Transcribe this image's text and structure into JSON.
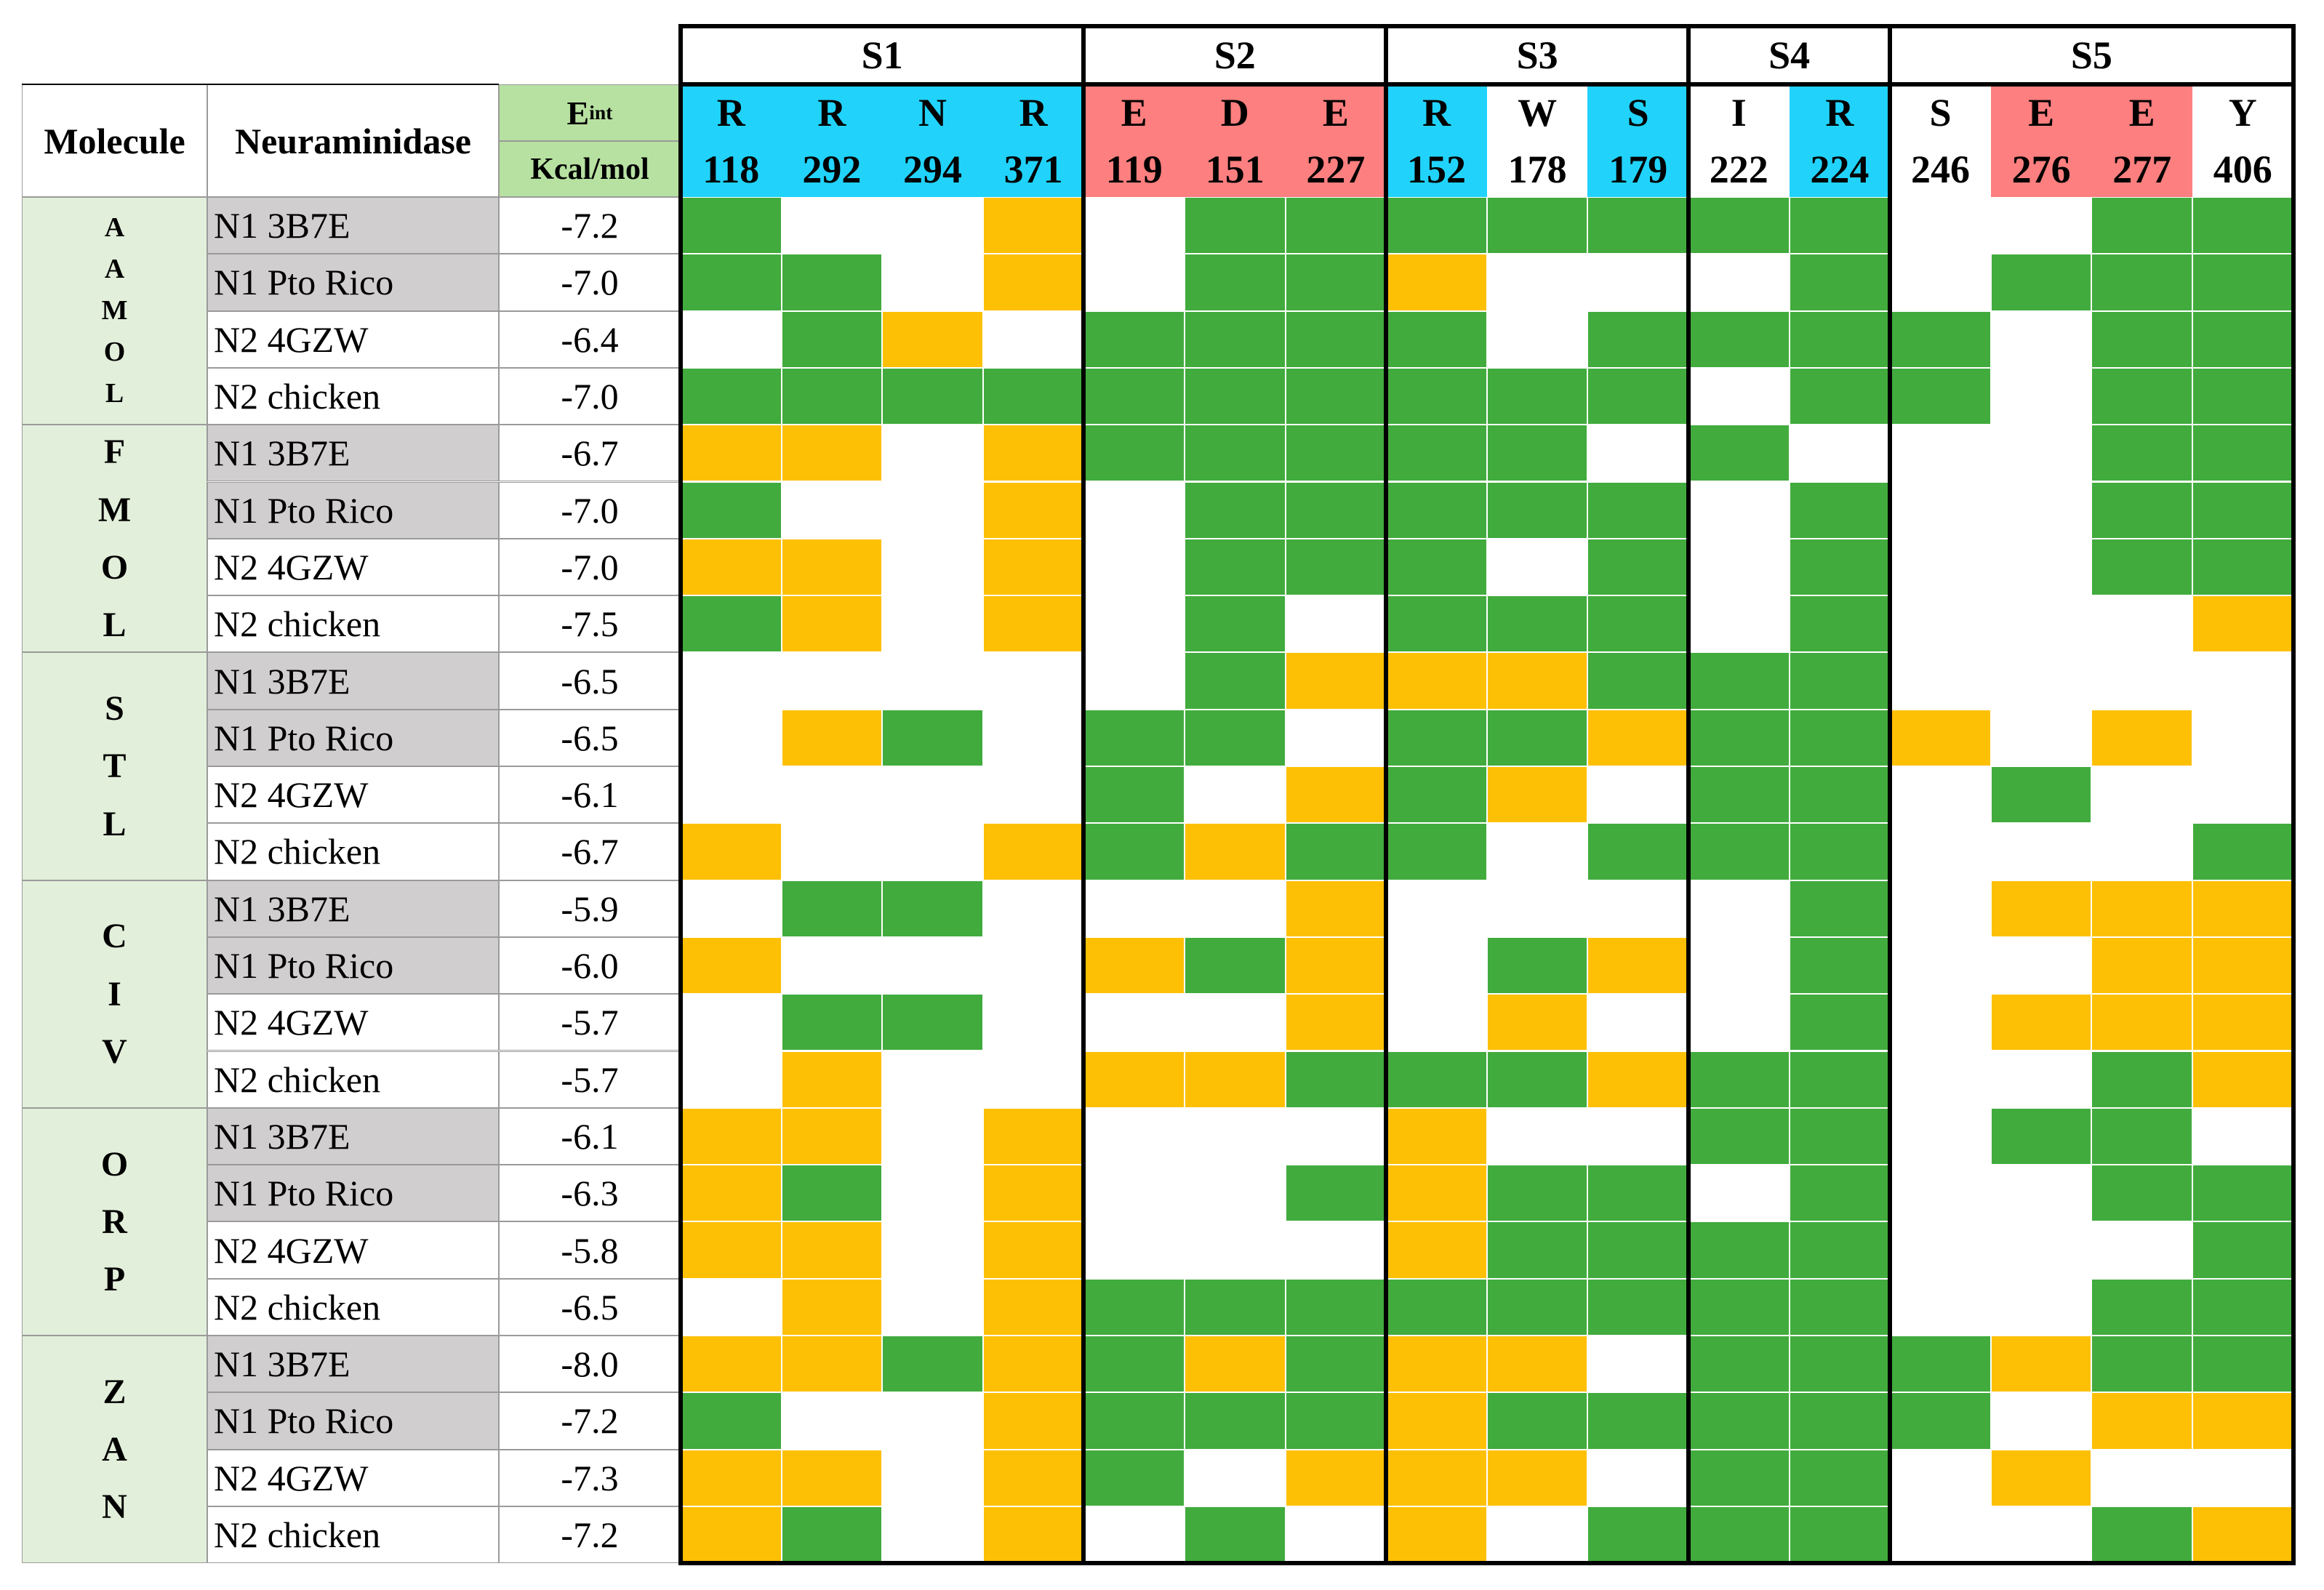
{
  "header": {
    "molecule": "Molecule",
    "neuraminidase": "Neuraminidase",
    "eint_main": "E",
    "eint_sub": "int",
    "eint_unit": "Kcal/mol"
  },
  "sites": [
    {
      "label": "S1",
      "span": 4
    },
    {
      "label": "S2",
      "span": 3
    },
    {
      "label": "S3",
      "span": 3
    },
    {
      "label": "S4",
      "span": 2
    },
    {
      "label": "S5",
      "span": 4
    }
  ],
  "residues": [
    {
      "aa": "R",
      "num": "118",
      "color": "#21d3fb"
    },
    {
      "aa": "R",
      "num": "292",
      "color": "#21d3fb"
    },
    {
      "aa": "N",
      "num": "294",
      "color": "#21d3fb"
    },
    {
      "aa": "R",
      "num": "371",
      "color": "#21d3fb"
    },
    {
      "aa": "E",
      "num": "119",
      "color": "#fd7f7f"
    },
    {
      "aa": "D",
      "num": "151",
      "color": "#fd7f7f"
    },
    {
      "aa": "E",
      "num": "227",
      "color": "#fd7f7f"
    },
    {
      "aa": "R",
      "num": "152",
      "color": "#21d3fb"
    },
    {
      "aa": "W",
      "num": "178",
      "color": "#ffffff"
    },
    {
      "aa": "S",
      "num": "179",
      "color": "#21d3fb"
    },
    {
      "aa": "I",
      "num": "222",
      "color": "#ffffff"
    },
    {
      "aa": "R",
      "num": "224",
      "color": "#21d3fb"
    },
    {
      "aa": "S",
      "num": "246",
      "color": "#ffffff"
    },
    {
      "aa": "E",
      "num": "276",
      "color": "#fd7f7f"
    },
    {
      "aa": "E",
      "num": "277",
      "color": "#fd7f7f"
    },
    {
      "aa": "Y",
      "num": "406",
      "color": "#ffffff"
    }
  ],
  "colors": {
    "green": "#41ab3d",
    "orange": "#fec004",
    "white": "#ffffff",
    "blue": "#21d3fb",
    "red": "#fd7f7f",
    "gray": "#d0cece",
    "mint": "#e2efda",
    "eint_bg": "#b7e1a1"
  },
  "groups": [
    {
      "molecule": "AAMOL",
      "rows": [
        {
          "neuraminidase": "N1 3B7E",
          "eint": "-7.2",
          "cells": "GWWOWGGGGGGGWWGG"
        },
        {
          "neuraminidase": "N1 Pto Rico",
          "eint": "-7.0",
          "cells": "GGWOWGGOWWWGWGGG"
        },
        {
          "neuraminidase": "N2 4GZW",
          "eint": "-6.4",
          "cells": "WGOWGGGGWGGGGWGG"
        },
        {
          "neuraminidase": "N2 chicken",
          "eint": "-7.0",
          "cells": "GGGGGGGGGGWGGWGG"
        }
      ]
    },
    {
      "molecule": "FMOL",
      "rows": [
        {
          "neuraminidase": "N1 3B7E",
          "eint": "-6.7",
          "cells": "OOWOGGGGGWGWWWGG"
        },
        {
          "neuraminidase": "N1 Pto Rico",
          "eint": "-7.0",
          "cells": "GWWOWGGGGGWGWWGG"
        },
        {
          "neuraminidase": "N2 4GZW",
          "eint": "-7.0",
          "cells": "OOWOWGGGWGWGWWGG"
        },
        {
          "neuraminidase": "N2 chicken",
          "eint": "-7.5",
          "cells": "GOWOWGWGGGWGWWWO"
        }
      ]
    },
    {
      "molecule": "STL",
      "rows": [
        {
          "neuraminidase": "N1 3B7E",
          "eint": "-6.5",
          "cells": "WWWWWGOOOGGGWWWW"
        },
        {
          "neuraminidase": "N1 Pto Rico",
          "eint": "-6.5",
          "cells": "WOGWGGWGGOGGOWOW"
        },
        {
          "neuraminidase": "N2 4GZW",
          "eint": "-6.1",
          "cells": "WWWWGWOGOWGGWGWW"
        },
        {
          "neuraminidase": "N2 chicken",
          "eint": "-6.7",
          "cells": "OWWOGOGGWGGGWWWG"
        }
      ]
    },
    {
      "molecule": "CIV",
      "rows": [
        {
          "neuraminidase": "N1 3B7E",
          "eint": "-5.9",
          "cells": "WGGWWWOWWWWGWOOO"
        },
        {
          "neuraminidase": "N1 Pto Rico",
          "eint": "-6.0",
          "cells": "OWWWOGOWGOWGWWOO"
        },
        {
          "neuraminidase": "N2 4GZW",
          "eint": "-5.7",
          "cells": "WGGWWWOWOWWGWOOO"
        },
        {
          "neuraminidase": "N2 chicken",
          "eint": "-5.7",
          "cells": "WOWWOOGGGOGGWWGO"
        }
      ]
    },
    {
      "molecule": "ORP",
      "rows": [
        {
          "neuraminidase": "N1 3B7E",
          "eint": "-6.1",
          "cells": "OOWOWWWOWWGGWGGW"
        },
        {
          "neuraminidase": "N1 Pto Rico",
          "eint": "-6.3",
          "cells": "OGWOWWGOGGWGWWGG"
        },
        {
          "neuraminidase": "N2 4GZW",
          "eint": "-5.8",
          "cells": "OOWOWWWOGGGGWWWG"
        },
        {
          "neuraminidase": "N2 chicken",
          "eint": "-6.5",
          "cells": "WOWOGGGGGGGGWWGG"
        }
      ]
    },
    {
      "molecule": "ZAN",
      "rows": [
        {
          "neuraminidase": "N1 3B7E",
          "eint": "-8.0",
          "cells": "OOGOGOGOOWGGGOGG"
        },
        {
          "neuraminidase": "N1 Pto Rico",
          "eint": "-7.2",
          "cells": "GWWOGGGOGGGGGWOO"
        },
        {
          "neuraminidase": "N2 4GZW",
          "eint": "-7.3",
          "cells": "OOWOGWOOOWGGWOWW"
        },
        {
          "neuraminidase": "N2 chicken",
          "eint": "-7.2",
          "cells": "OGWOWGWOWGGGWWGO"
        }
      ]
    }
  ]
}
